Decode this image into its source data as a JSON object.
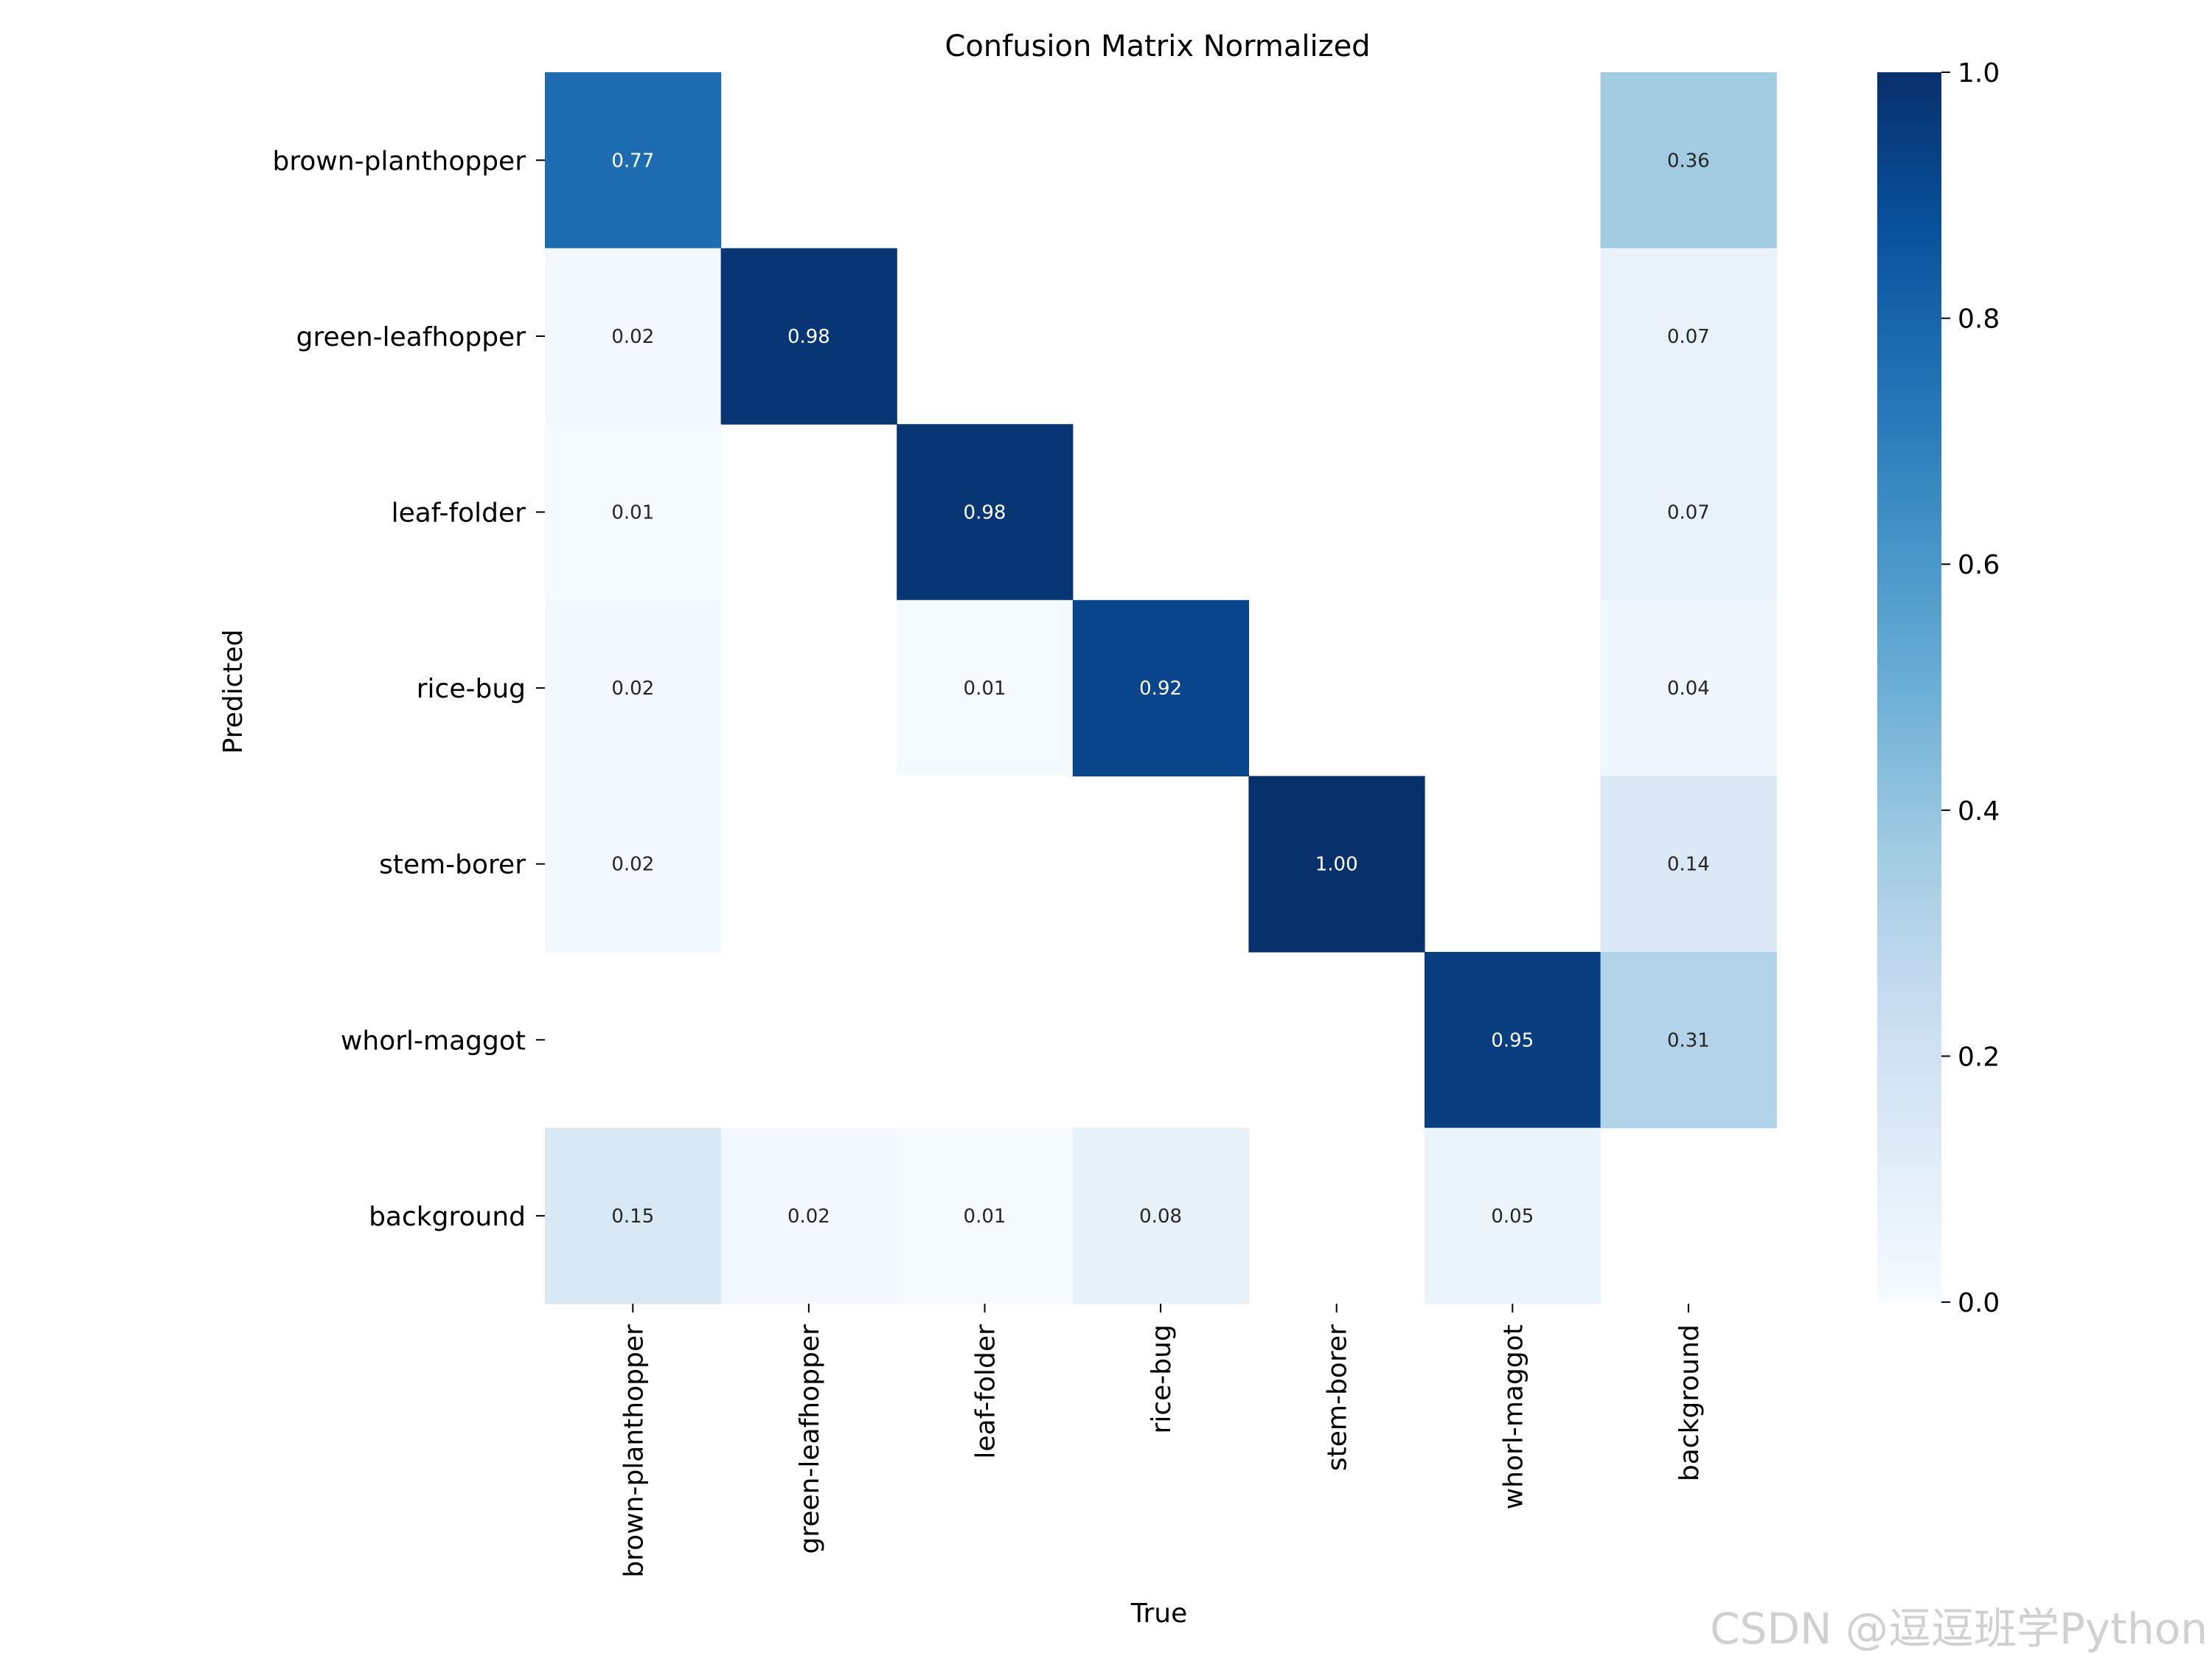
{
  "chart_data": {
    "type": "heatmap",
    "title": "Confusion Matrix Normalized",
    "xlabel": "True",
    "ylabel": "Predicted",
    "x_categories": [
      "brown-planthopper",
      "green-leafhopper",
      "leaf-folder",
      "rice-bug",
      "stem-borer",
      "whorl-maggot",
      "background"
    ],
    "y_categories": [
      "brown-planthopper",
      "green-leafhopper",
      "leaf-folder",
      "rice-bug",
      "stem-borer",
      "whorl-maggot",
      "background"
    ],
    "values": [
      [
        0.77,
        null,
        null,
        null,
        null,
        null,
        0.36
      ],
      [
        0.02,
        0.98,
        null,
        null,
        null,
        null,
        0.07
      ],
      [
        0.01,
        null,
        0.98,
        null,
        null,
        null,
        0.07
      ],
      [
        0.02,
        null,
        0.01,
        0.92,
        null,
        null,
        0.04
      ],
      [
        0.02,
        null,
        null,
        null,
        1.0,
        null,
        0.14
      ],
      [
        null,
        null,
        null,
        null,
        null,
        0.95,
        0.31
      ],
      [
        0.15,
        0.02,
        0.01,
        0.08,
        null,
        0.05,
        null
      ]
    ],
    "value_labels": [
      [
        "0.77",
        "",
        "",
        "",
        "",
        "",
        "0.36"
      ],
      [
        "0.02",
        "0.98",
        "",
        "",
        "",
        "",
        "0.07"
      ],
      [
        "0.01",
        "",
        "0.98",
        "",
        "",
        "",
        "0.07"
      ],
      [
        "0.02",
        "",
        "0.01",
        "0.92",
        "",
        "",
        "0.04"
      ],
      [
        "0.02",
        "",
        "",
        "",
        "1.00",
        "",
        "0.14"
      ],
      [
        "",
        "",
        "",
        "",
        "",
        "0.95",
        "0.31"
      ],
      [
        "0.15",
        "0.02",
        "0.01",
        "0.08",
        "",
        "0.05",
        ""
      ]
    ],
    "colorbar": {
      "range": [
        0.0,
        1.0
      ],
      "ticks": [
        0.0,
        0.2,
        0.4,
        0.6,
        0.8,
        1.0
      ],
      "tick_labels": [
        "0.0",
        "0.2",
        "0.4",
        "0.6",
        "0.8",
        "1.0"
      ]
    },
    "colormap": "Blues",
    "colormap_stops": [
      "#f7fbff",
      "#deebf7",
      "#c6dbef",
      "#9ecae1",
      "#6baed6",
      "#4292c6",
      "#2171b5",
      "#08519c",
      "#08306b"
    ]
  },
  "watermark": "CSDN @逗逗班学Python"
}
